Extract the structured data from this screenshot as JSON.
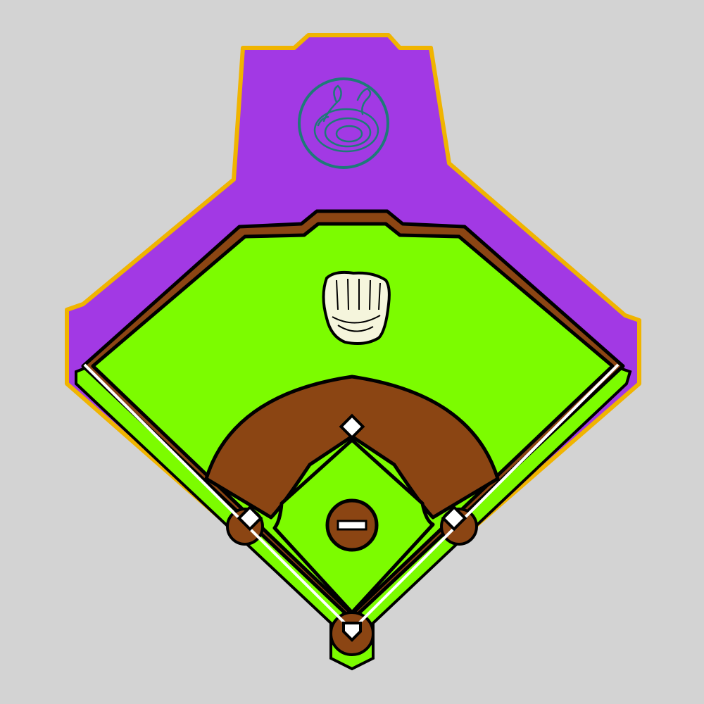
{
  "scene": {
    "type": "baseball-field-top-down",
    "background_color": "#d3d3d3"
  },
  "colors": {
    "stands": "#a239e4",
    "stands_trim": "#f0b400",
    "warning_track": "#8b4513",
    "grass": "#7cfc00",
    "infield_dirt": "#8b4513",
    "base": "#ffffff",
    "foul_line": "#ffffff",
    "outline": "#000000",
    "emblem_ring": "#1e7a78",
    "emblem_bg": "#a239e4",
    "glove": "#f5f5dc"
  },
  "field": {
    "bases": [
      "first-base",
      "second-base",
      "third-base",
      "home-plate"
    ],
    "features": [
      "pitchers-mound",
      "pitching-rubber",
      "foul-line-left",
      "foul-line-right",
      "infield-dirt",
      "warning-track",
      "outfield-grass"
    ]
  },
  "stands": {
    "emblem_icon": "coiled-snake-icon",
    "logo_icon": "baseball-glove-icon"
  }
}
